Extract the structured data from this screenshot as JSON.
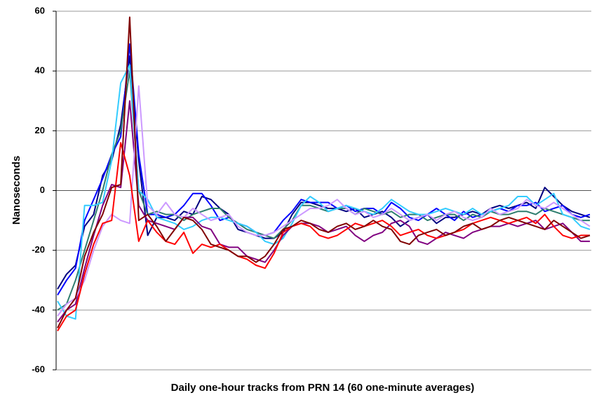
{
  "chart_data": {
    "type": "line",
    "y_label": "Nanoseconds",
    "x_label": "Daily one-hour tracks from PRN 14 (60 one-minute averages)",
    "ylim": [
      -60,
      60
    ],
    "yticks": [
      -60,
      -40,
      -20,
      0,
      20,
      40,
      60
    ],
    "grid": true,
    "series": [
      {
        "color": "#000080",
        "values": [
          -33,
          -28,
          -25,
          -12,
          -8,
          5,
          10,
          22,
          45,
          10,
          -15,
          -9,
          -9,
          -10,
          -7,
          -8,
          -2,
          -3,
          -6,
          -8,
          -13,
          -14,
          -15,
          -16,
          -16,
          -14,
          -8,
          -4,
          -4,
          -5,
          -6,
          -6,
          -7,
          -6,
          -9,
          -8,
          -7,
          -9,
          -12,
          -10,
          -9,
          -8,
          -11,
          -9,
          -9,
          -8,
          -7,
          -8,
          -6,
          -5,
          -6,
          -5,
          -4,
          -6,
          1,
          -2,
          -5,
          -7,
          -8,
          -9
        ]
      },
      {
        "color": "#0000ff",
        "values": [
          -35,
          -30,
          -26,
          -10,
          -3,
          4,
          12,
          18,
          49,
          12,
          -8,
          -8,
          -9,
          -8,
          -5,
          -1,
          -1,
          -5,
          -10,
          -9,
          -11,
          -12,
          -14,
          -15,
          -14,
          -10,
          -7,
          -3,
          -4,
          -4,
          -4,
          -6,
          -5,
          -7,
          -6,
          -6,
          -8,
          -4,
          -6,
          -9,
          -10,
          -8,
          -6,
          -8,
          -10,
          -7,
          -9,
          -8,
          -7,
          -6,
          -7,
          -5,
          -5,
          -4,
          -7,
          -6,
          -5,
          -8,
          -9,
          -8
        ]
      },
      {
        "color": "#2e7d6e",
        "values": [
          -40,
          -38,
          -30,
          -20,
          -10,
          0,
          12,
          20,
          40,
          0,
          -8,
          -7,
          -8,
          -8,
          -10,
          -8,
          -7,
          -6,
          -6,
          -9,
          -11,
          -13,
          -14,
          -15,
          -16,
          -13,
          -10,
          -5,
          -5,
          -6,
          -7,
          -6,
          -6,
          -8,
          -6,
          -7,
          -8,
          -7,
          -9,
          -8,
          -8,
          -10,
          -9,
          -8,
          -8,
          -10,
          -8,
          -9,
          -7,
          -8,
          -8,
          -7,
          -7,
          -8,
          -6,
          -7,
          -8,
          -9,
          -10,
          -10
        ]
      },
      {
        "color": "#33ccff",
        "values": [
          -37,
          -42,
          -43,
          -5,
          -5,
          -4,
          10,
          36,
          42,
          0,
          -3,
          -9,
          -10,
          -11,
          -13,
          -12,
          -10,
          -9,
          -9,
          -10,
          -11,
          -12,
          -14,
          -17,
          -18,
          -16,
          -11,
          -5,
          -2,
          -4,
          -7,
          -6,
          -5,
          -6,
          -7,
          -8,
          -6,
          -3,
          -5,
          -7,
          -8,
          -8,
          -7,
          -6,
          -7,
          -8,
          -6,
          -8,
          -7,
          -6,
          -5,
          -2,
          -2,
          -5,
          -3,
          -1,
          -8,
          -9,
          -12,
          -13
        ]
      },
      {
        "color": "#800080",
        "values": [
          -44,
          -40,
          -38,
          -26,
          -15,
          -5,
          2,
          1,
          30,
          -5,
          -10,
          -11,
          -12,
          -13,
          -9,
          -9,
          -12,
          -13,
          -18,
          -19,
          -19,
          -22,
          -23,
          -24,
          -20,
          -15,
          -12,
          -11,
          -11,
          -12,
          -14,
          -13,
          -12,
          -15,
          -17,
          -15,
          -14,
          -11,
          -10,
          -12,
          -17,
          -18,
          -16,
          -14,
          -15,
          -16,
          -14,
          -13,
          -12,
          -12,
          -11,
          -12,
          -11,
          -10,
          -13,
          -12,
          -11,
          -14,
          -17,
          -17
        ]
      },
      {
        "color": "#cc99ff",
        "values": [
          -42,
          -38,
          -36,
          -30,
          -20,
          -12,
          -8,
          -10,
          -11,
          35,
          -5,
          -8,
          -4,
          -8,
          -9,
          -6,
          -8,
          -10,
          -9,
          -8,
          -12,
          -14,
          -15,
          -15,
          -14,
          -12,
          -10,
          -8,
          -6,
          -6,
          -5,
          -3,
          -6,
          -8,
          -7,
          -9,
          -8,
          -6,
          -8,
          -10,
          -9,
          -8,
          -10,
          -8,
          -7,
          -9,
          -10,
          -9,
          -6,
          -8,
          -7,
          -6,
          -3,
          -5,
          -6,
          -4,
          -6,
          -8,
          -10,
          -12
        ]
      },
      {
        "color": "#ff0000",
        "values": [
          -47,
          -42,
          -40,
          -28,
          -18,
          -11,
          -10,
          16,
          5,
          -17,
          -10,
          -14,
          -17,
          -18,
          -14,
          -21,
          -18,
          -19,
          -18,
          -20,
          -22,
          -23,
          -25,
          -26,
          -21,
          -14,
          -12,
          -11,
          -12,
          -15,
          -16,
          -15,
          -13,
          -11,
          -12,
          -11,
          -10,
          -12,
          -15,
          -14,
          -13,
          -15,
          -16,
          -15,
          -14,
          -13,
          -11,
          -10,
          -9,
          -10,
          -11,
          -10,
          -9,
          -11,
          -8,
          -12,
          -15,
          -16,
          -15,
          -15
        ]
      },
      {
        "color": "#800000",
        "values": [
          -46,
          -40,
          -36,
          -22,
          -14,
          -8,
          1,
          2,
          58,
          -10,
          -8,
          -12,
          -17,
          -13,
          -9,
          -10,
          -13,
          -18,
          -19,
          -20,
          -22,
          -22,
          -24,
          -22,
          -18,
          -13,
          -12,
          -10,
          -11,
          -13,
          -14,
          -12,
          -11,
          -13,
          -12,
          -10,
          -12,
          -13,
          -17,
          -18,
          -15,
          -14,
          -13,
          -15,
          -14,
          -12,
          -11,
          -13,
          -12,
          -10,
          -9,
          -10,
          -11,
          -12,
          -13,
          -10,
          -12,
          -14,
          -16,
          -15
        ]
      }
    ]
  }
}
